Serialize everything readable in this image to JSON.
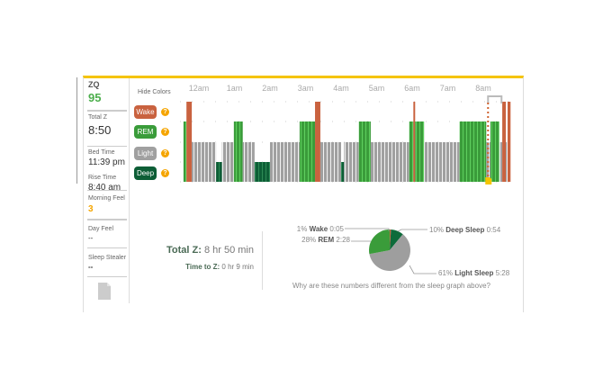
{
  "summary": {
    "zq_label": "ZQ",
    "zq_value": "95",
    "total_z_label": "Total Z",
    "total_z_value": "8:50",
    "bed_time_label": "Bed Time",
    "bed_time_value": "11:39 pm",
    "rise_time_label": "Rise Time",
    "rise_time_value": "8:40 am",
    "morning_feel_label": "Morning Feel",
    "morning_feel_value": "3",
    "day_feel_label": "Day Feel",
    "day_feel_value": "--",
    "sleep_stealer_label": "Sleep Stealer",
    "sleep_stealer_value": "--",
    "file_icon": "document-icon"
  },
  "legend": {
    "hide_colors": "Hide Colors",
    "items": [
      {
        "label": "Wake",
        "color": "#c9623f"
      },
      {
        "label": "REM",
        "color": "#3a9c3a"
      },
      {
        "label": "Light",
        "color": "#a0a0a0"
      },
      {
        "label": "Deep",
        "color": "#0d5e36"
      }
    ],
    "help_icon": "question-icon"
  },
  "colors": {
    "accent": "#f5c400",
    "zq": "#4cae4c",
    "morning_feel": "#f5a500"
  },
  "hypnogram": {
    "hour_labels": [
      "12am",
      "1am",
      "2am",
      "3am",
      "4am",
      "5am",
      "6am",
      "7am",
      "8am"
    ],
    "range": [
      "23:34",
      "08:48"
    ],
    "segments": [
      [
        "23:34",
        "23:39",
        "REM"
      ],
      [
        "23:39",
        "23:48",
        "Wake"
      ],
      [
        "23:48",
        "00:29",
        "Light"
      ],
      [
        "00:29",
        "00:39",
        "Deep"
      ],
      [
        "00:39",
        "00:59",
        "Light"
      ],
      [
        "00:59",
        "01:14",
        "REM"
      ],
      [
        "01:14",
        "01:34",
        "Light"
      ],
      [
        "01:34",
        "02:00",
        "Deep"
      ],
      [
        "02:00",
        "02:50",
        "Light"
      ],
      [
        "02:50",
        "03:16",
        "REM"
      ],
      [
        "03:16",
        "03:25",
        "Wake"
      ],
      [
        "03:25",
        "04:00",
        "Light"
      ],
      [
        "04:00",
        "04:05",
        "Deep"
      ],
      [
        "04:05",
        "04:30",
        "Light"
      ],
      [
        "04:30",
        "04:50",
        "REM"
      ],
      [
        "04:50",
        "05:55",
        "Light"
      ],
      [
        "05:55",
        "06:02",
        "REM"
      ],
      [
        "06:02",
        "06:05",
        "Wake"
      ],
      [
        "06:05",
        "06:20",
        "REM"
      ],
      [
        "06:20",
        "07:20",
        "Light"
      ],
      [
        "07:20",
        "08:05",
        "REM"
      ],
      [
        "08:05",
        "08:12",
        "Light"
      ],
      [
        "08:12",
        "08:27",
        "REM"
      ],
      [
        "08:27",
        "08:32",
        "Light"
      ],
      [
        "08:32",
        "08:38",
        "Wake"
      ],
      [
        "08:38",
        "08:41",
        "Light"
      ],
      [
        "08:41",
        "08:46",
        "Wake"
      ]
    ],
    "marker_time": "08:08"
  },
  "totals": {
    "total_z_label": "Total Z:",
    "total_z_value": "8 hr 50 min",
    "time_to_z_label": "Time to Z:",
    "time_to_z_value": "0 hr 9 min"
  },
  "pie": {
    "slices": [
      {
        "pct_label": "1%",
        "name": "Wake",
        "time": "0:05",
        "value": 1,
        "color": "#c9623f"
      },
      {
        "pct_label": "10%",
        "name": "Deep Sleep",
        "time": "0:54",
        "value": 10,
        "color": "#0d6b3a"
      },
      {
        "pct_label": "61%",
        "name": "Light Sleep",
        "time": "5:28",
        "value": 61,
        "color": "#9e9e9e"
      },
      {
        "pct_label": "28%",
        "name": "REM",
        "time": "2:28",
        "value": 28,
        "color": "#3a9c3a"
      }
    ],
    "why_link": "Why are these numbers different from the sleep graph above?"
  }
}
